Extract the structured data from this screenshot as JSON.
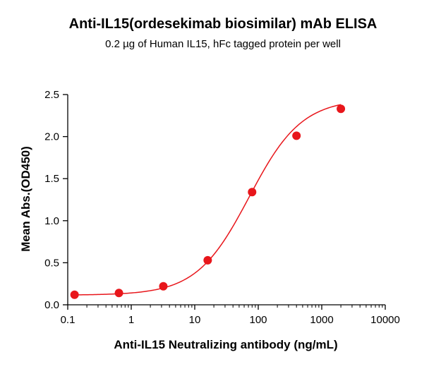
{
  "chart_data": {
    "type": "scatter",
    "title": "Anti-IL15(ordesekimab biosimilar) mAb ELISA",
    "subtitle": "0.2 µg of Human IL15, hFc tagged protein per well",
    "xlabel": "Anti-IL15 Neutralizing antibody (ng/mL)",
    "ylabel": "Mean Abs.(OD450)",
    "x_scale": "log",
    "xlim": [
      0.1,
      10000
    ],
    "ylim": [
      0.0,
      2.5
    ],
    "x_ticks": [
      0.1,
      1,
      10,
      100,
      1000,
      10000
    ],
    "x_tick_labels": [
      "0.1",
      "1",
      "10",
      "100",
      "1000",
      "10000"
    ],
    "y_ticks": [
      0.0,
      0.5,
      1.0,
      1.5,
      2.0,
      2.5
    ],
    "y_tick_labels": [
      "0.0",
      "0.5",
      "1.0",
      "1.5",
      "2.0",
      "2.5"
    ],
    "grid": false,
    "color": "#e8161b",
    "points": [
      {
        "x": 0.128,
        "y": 0.12
      },
      {
        "x": 0.64,
        "y": 0.14
      },
      {
        "x": 3.2,
        "y": 0.22
      },
      {
        "x": 16,
        "y": 0.53
      },
      {
        "x": 80,
        "y": 1.34
      },
      {
        "x": 400,
        "y": 2.01
      },
      {
        "x": 2000,
        "y": 2.33
      }
    ],
    "fit": {
      "type": "4PL",
      "bottom": 0.115,
      "top": 2.45,
      "ec50": 72,
      "hill": 1.05
    }
  }
}
